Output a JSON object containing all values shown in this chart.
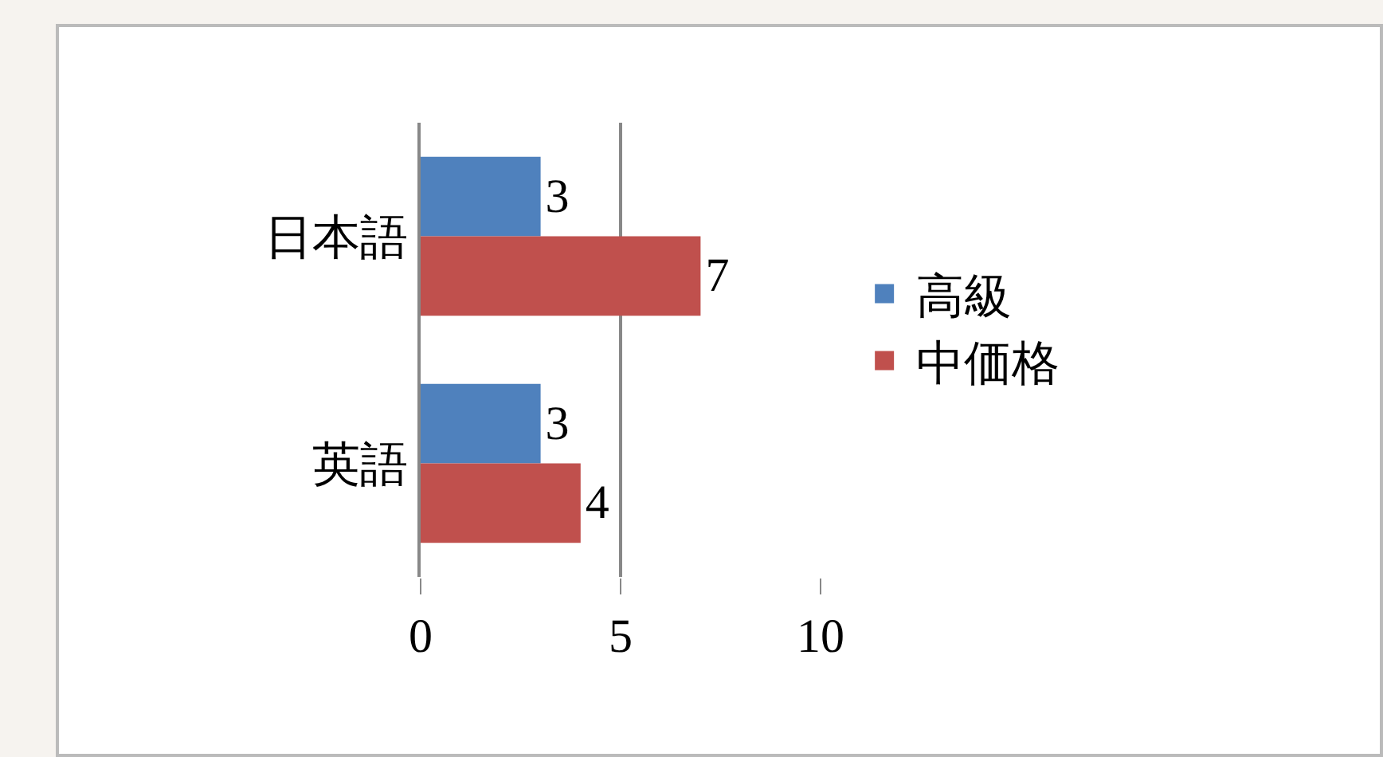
{
  "chart_data": {
    "type": "bar",
    "orientation": "horizontal",
    "categories": [
      "日本語",
      "英語"
    ],
    "series": [
      {
        "name": "高級",
        "color": "#4f81bd",
        "values": [
          3,
          3
        ]
      },
      {
        "name": "中価格",
        "color": "#c0504d",
        "values": [
          7,
          4
        ]
      }
    ],
    "xlim": [
      0,
      10
    ],
    "xticks": [
      0,
      5,
      10
    ],
    "grid": "x",
    "legend": "right",
    "data_labels": true
  }
}
